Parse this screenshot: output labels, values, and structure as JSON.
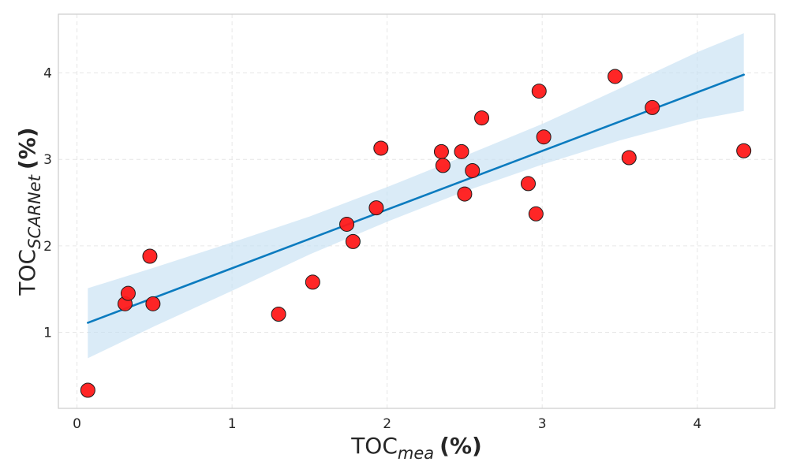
{
  "chart_data": {
    "type": "scatter",
    "title": "",
    "xlabel": {
      "main": "TOC",
      "sub": "mea",
      "unit": "(%)"
    },
    "ylabel": {
      "main": "TOC",
      "sub": "SCARNet",
      "unit": "(%)"
    },
    "xlim": [
      -0.12,
      4.5
    ],
    "ylim": [
      0.12,
      4.68
    ],
    "xticks": [
      0,
      1,
      2,
      3,
      4
    ],
    "yticks": [
      1,
      2,
      3,
      4
    ],
    "grid": true,
    "colors": {
      "points": "#ff1a1a",
      "point_edge": "#1a1a1a",
      "fit_line": "#0b7bbf",
      "band": "#c6e0f2"
    },
    "points": [
      {
        "x": 0.07,
        "y": 0.33
      },
      {
        "x": 0.31,
        "y": 1.33
      },
      {
        "x": 0.33,
        "y": 1.45
      },
      {
        "x": 0.47,
        "y": 1.88
      },
      {
        "x": 0.49,
        "y": 1.33
      },
      {
        "x": 1.3,
        "y": 1.21
      },
      {
        "x": 1.52,
        "y": 1.58
      },
      {
        "x": 1.74,
        "y": 2.25
      },
      {
        "x": 1.78,
        "y": 2.05
      },
      {
        "x": 1.93,
        "y": 2.44
      },
      {
        "x": 1.96,
        "y": 3.13
      },
      {
        "x": 2.35,
        "y": 3.09
      },
      {
        "x": 2.36,
        "y": 2.93
      },
      {
        "x": 2.48,
        "y": 3.09
      },
      {
        "x": 2.5,
        "y": 2.6
      },
      {
        "x": 2.55,
        "y": 2.87
      },
      {
        "x": 2.61,
        "y": 3.48
      },
      {
        "x": 2.91,
        "y": 2.72
      },
      {
        "x": 2.96,
        "y": 2.37
      },
      {
        "x": 2.98,
        "y": 3.79
      },
      {
        "x": 3.01,
        "y": 3.26
      },
      {
        "x": 3.47,
        "y": 3.96
      },
      {
        "x": 3.56,
        "y": 3.02
      },
      {
        "x": 3.71,
        "y": 3.6
      },
      {
        "x": 4.3,
        "y": 3.1
      }
    ],
    "fit": {
      "x": [
        0.07,
        4.3
      ],
      "y": [
        1.11,
        3.98
      ]
    },
    "confidence_band": {
      "x": [
        0.07,
        0.5,
        1.0,
        1.5,
        2.0,
        2.5,
        3.0,
        3.5,
        4.0,
        4.3
      ],
      "lower": [
        0.7,
        1.07,
        1.48,
        1.9,
        2.28,
        2.63,
        2.94,
        3.22,
        3.46,
        3.56
      ],
      "upper": [
        1.51,
        1.75,
        2.04,
        2.34,
        2.68,
        3.04,
        3.41,
        3.82,
        4.24,
        4.46
      ]
    }
  }
}
